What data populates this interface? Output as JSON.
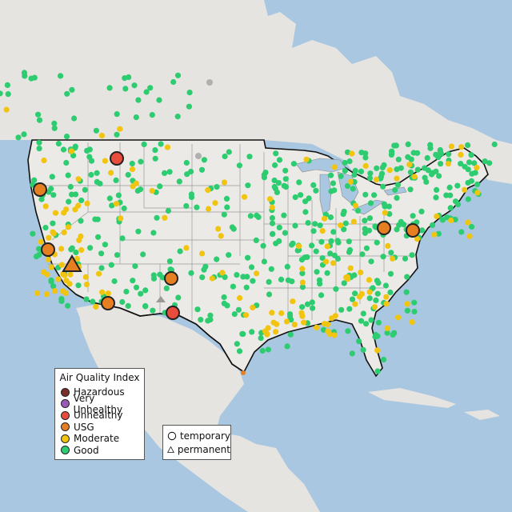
{
  "map": {
    "legend": {
      "title": "Air Quality Index",
      "items": [
        {
          "label": "Hazardous",
          "color": "#7a2e2a"
        },
        {
          "label": "Very Unhealthy",
          "color": "#9b59b6"
        },
        {
          "label": "Unhealthy",
          "color": "#e74c3c"
        },
        {
          "label": "USG",
          "color": "#e67e22"
        },
        {
          "label": "Moderate",
          "color": "#f1c40f"
        },
        {
          "label": "Good",
          "color": "#2ecc71"
        }
      ]
    },
    "shape_legend": {
      "items": [
        {
          "label": "temporary",
          "icon": "circle-icon"
        },
        {
          "label": "permanent",
          "icon": "triangle-icon"
        }
      ]
    },
    "colors": {
      "water": "#a9c7e0",
      "land": "#e6e4e0",
      "us_land": "#eceae6",
      "border": "#111111",
      "state_lines": "#9a9a9a"
    },
    "highlighted_sites": [
      {
        "category": "Unhealthy",
        "type": "temporary",
        "location": "western Montana"
      },
      {
        "category": "USG",
        "type": "temporary",
        "location": "western Oregon"
      },
      {
        "category": "USG",
        "type": "temporary",
        "location": "northern California"
      },
      {
        "category": "USG",
        "type": "permanent",
        "location": "eastern California"
      },
      {
        "category": "USG",
        "type": "temporary",
        "location": "southern California"
      },
      {
        "category": "USG",
        "type": "temporary",
        "location": "New Mexico"
      },
      {
        "category": "Unhealthy",
        "type": "temporary",
        "location": "southern New Mexico"
      },
      {
        "category": "USG",
        "type": "temporary",
        "location": "western Pennsylvania"
      },
      {
        "category": "USG",
        "type": "temporary",
        "location": "Maryland"
      }
    ]
  }
}
